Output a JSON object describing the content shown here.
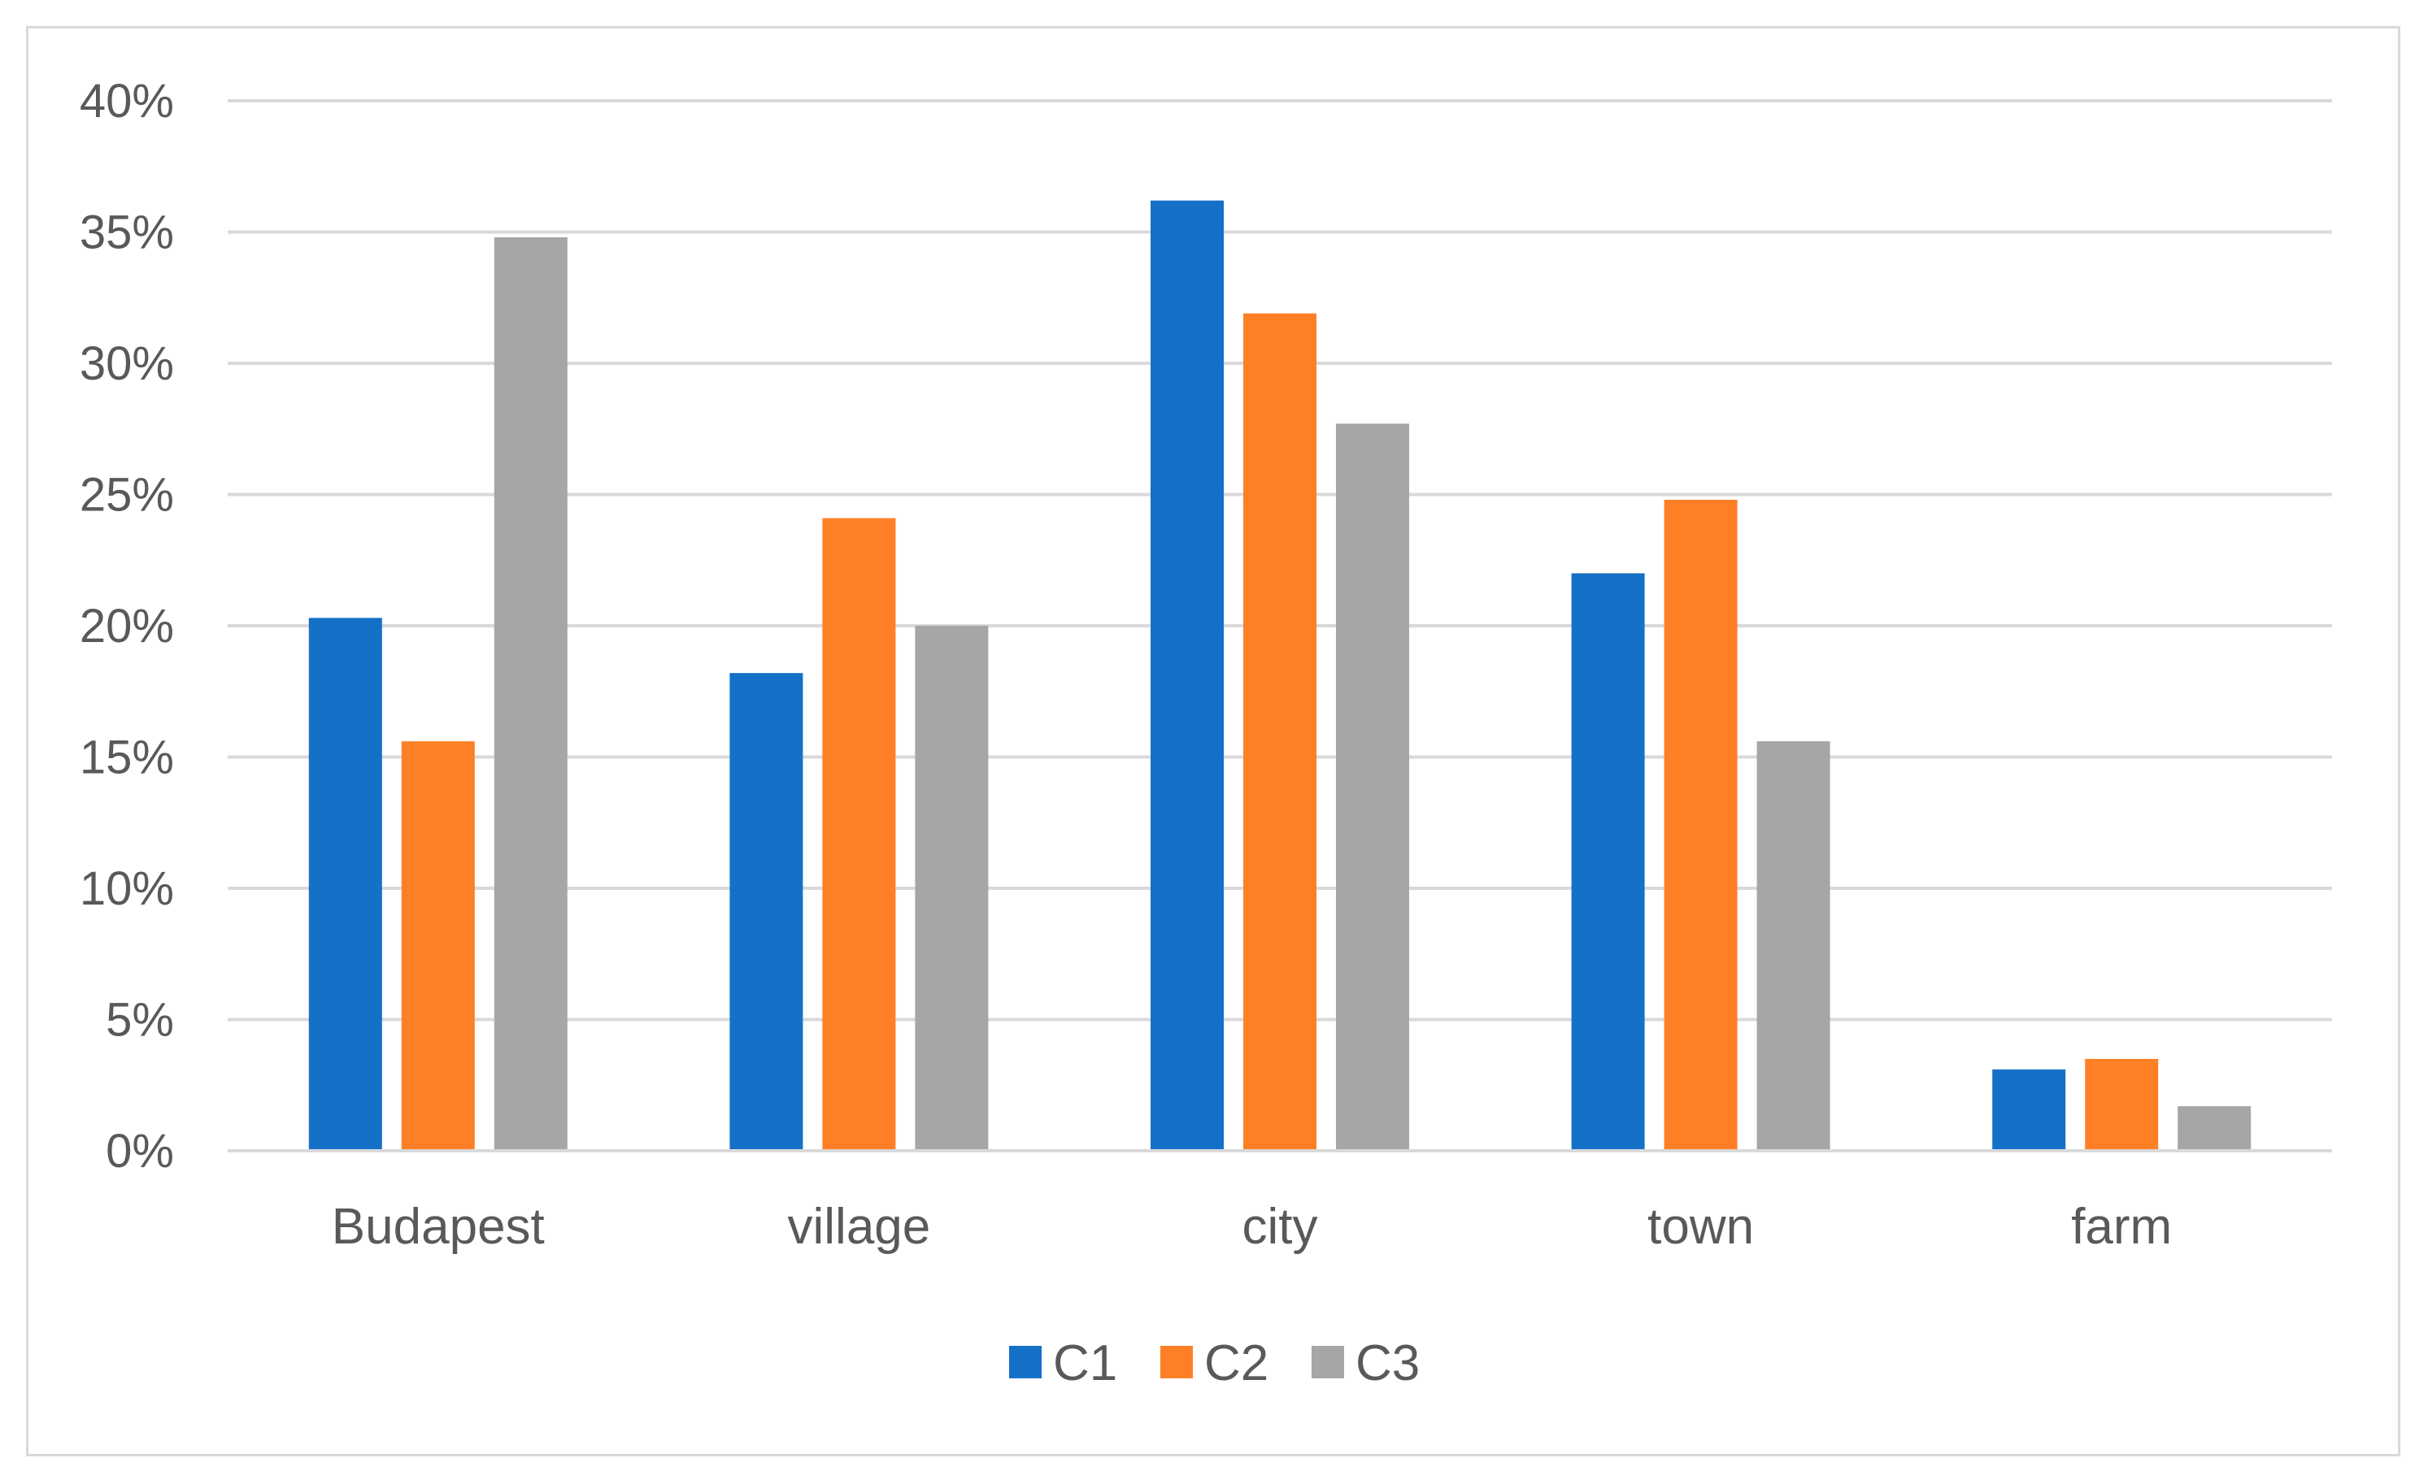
{
  "chart_data": {
    "type": "bar",
    "categories": [
      "Budapest",
      "village",
      "city",
      "town",
      "farm"
    ],
    "series": [
      {
        "name": "C1",
        "color": "#1570C8",
        "values": [
          20.3,
          18.2,
          36.2,
          22.0,
          3.1
        ]
      },
      {
        "name": "C2",
        "color": "#FF7F27",
        "values": [
          15.6,
          24.1,
          31.9,
          24.8,
          3.5
        ]
      },
      {
        "name": "C3",
        "color": "#A6A6A6",
        "values": [
          34.8,
          20.0,
          27.7,
          15.6,
          1.7
        ]
      }
    ],
    "yticks": [
      "0%",
      "5%",
      "10%",
      "15%",
      "20%",
      "25%",
      "30%",
      "35%",
      "40%"
    ],
    "ylim": [
      0,
      40
    ],
    "ytick_step": 5,
    "grid": true,
    "legend_position": "bottom",
    "gridline_color": "#d9d9d9",
    "text_color": "#595959"
  }
}
